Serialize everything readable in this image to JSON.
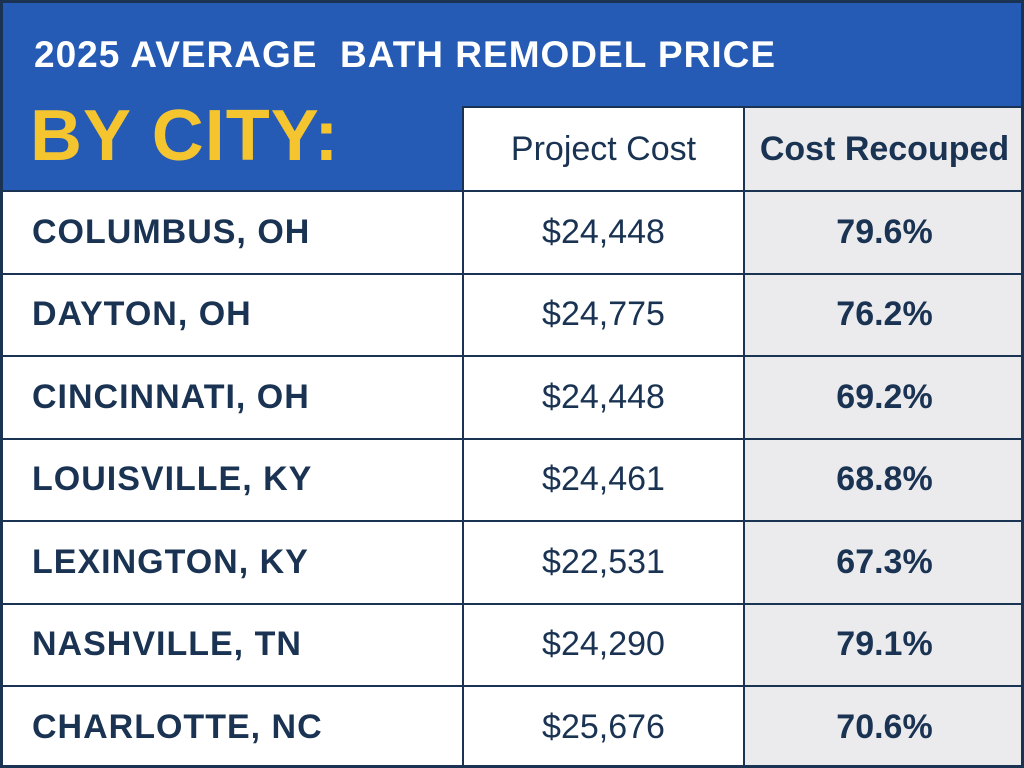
{
  "header": {
    "title": "2025 AVERAGE  BATH REMODEL PRICE",
    "subtitle": "BY CITY:"
  },
  "columns": [
    "Project Cost",
    "Cost Recouped"
  ],
  "rows": [
    {
      "city": "COLUMBUS, OH",
      "cost": "$24,448",
      "recouped": "79.6%"
    },
    {
      "city": "DAYTON, OH",
      "cost": "$24,775",
      "recouped": "76.2%"
    },
    {
      "city": "CINCINNATI, OH",
      "cost": "$24,448",
      "recouped": "69.2%"
    },
    {
      "city": "LOUISVILLE, KY",
      "cost": "$24,461",
      "recouped": "68.8%"
    },
    {
      "city": "LEXINGTON, KY",
      "cost": "$22,531",
      "recouped": "67.3%"
    },
    {
      "city": "NASHVILLE, TN",
      "cost": "$24,290",
      "recouped": "79.1%"
    },
    {
      "city": "CHARLOTTE, NC",
      "cost": "$25,676",
      "recouped": "70.6%"
    }
  ],
  "colors": {
    "header_bg": "#255ab5",
    "title_text": "#ffffff",
    "subtitle_text": "#f5c530",
    "table_text": "#1a3352",
    "recouped_bg": "#ebebed"
  },
  "chart_data": {
    "type": "table",
    "title": "2025 AVERAGE  BATH REMODEL PRICE",
    "subtitle": "BY CITY:",
    "columns": [
      "",
      "Project Cost",
      "Cost Recouped"
    ],
    "categories": [
      "COLUMBUS, OH",
      "DAYTON, OH",
      "CINCINNATI, OH",
      "LOUISVILLE, KY",
      "LEXINGTON, KY",
      "NASHVILLE, TN",
      "CHARLOTTE, NC"
    ],
    "series": [
      {
        "name": "Project Cost",
        "values": [
          24448,
          24775,
          24448,
          24461,
          22531,
          24290,
          25676
        ]
      },
      {
        "name": "Cost Recouped",
        "values": [
          79.6,
          76.2,
          69.2,
          68.8,
          67.3,
          79.1,
          70.6
        ]
      }
    ]
  }
}
